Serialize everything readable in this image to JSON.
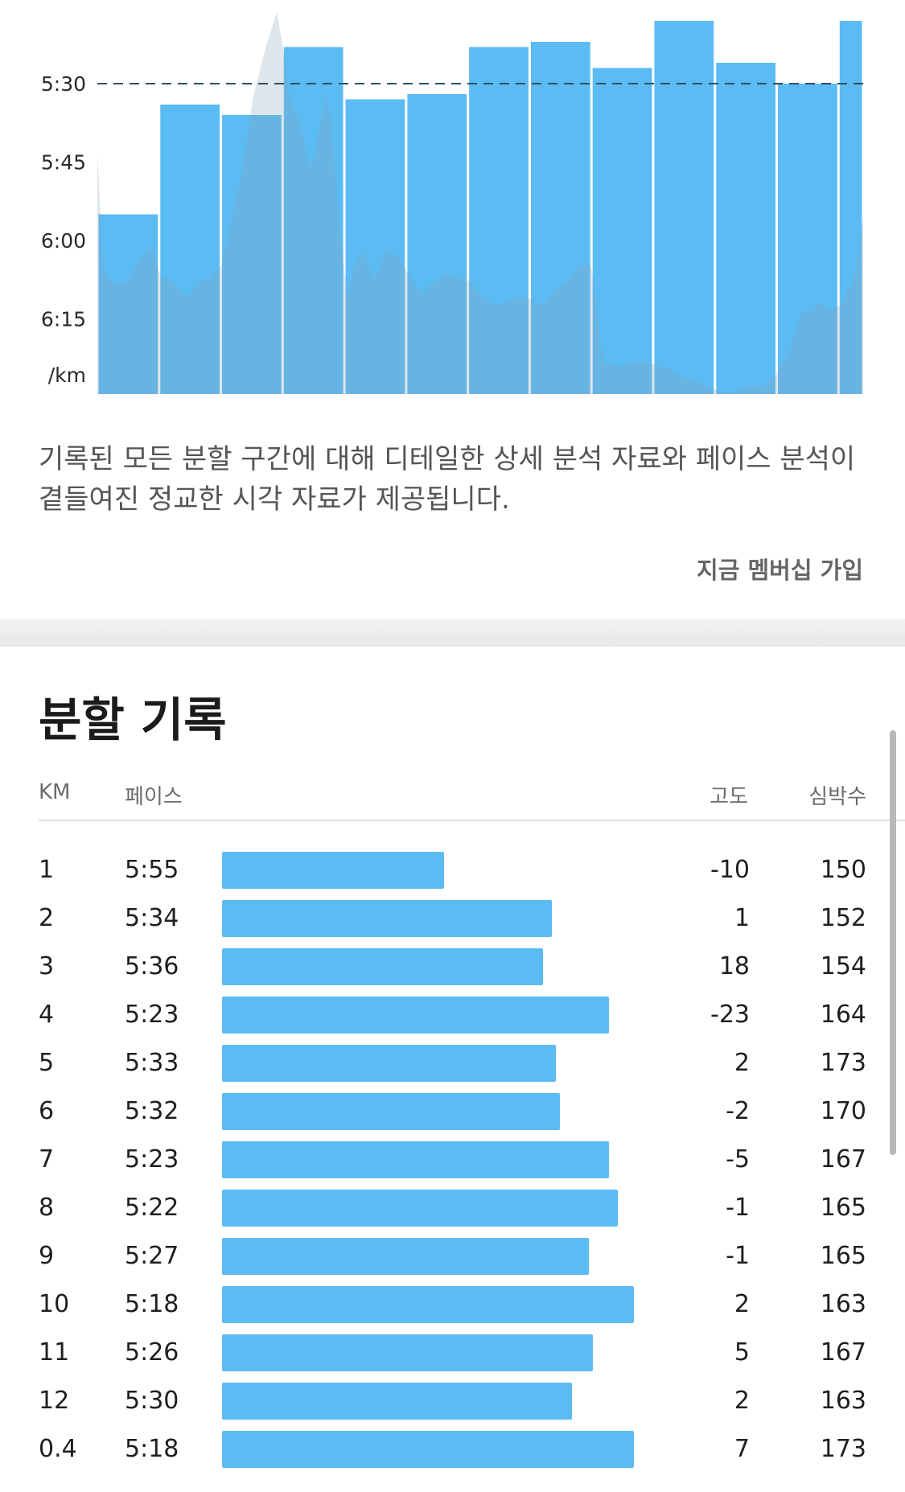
{
  "chart_data": {
    "type": "bar",
    "categories": [
      "1",
      "2",
      "3",
      "4",
      "5",
      "6",
      "7",
      "8",
      "9",
      "10",
      "11",
      "12",
      "0.4"
    ],
    "values_seconds": [
      355,
      334,
      336,
      323,
      333,
      332,
      323,
      322,
      327,
      318,
      326,
      330,
      318
    ],
    "y_ticks": [
      "5:30",
      "5:45",
      "6:00",
      "6:15"
    ],
    "y_unit": "/km",
    "average_line": "5:30",
    "colors": {
      "bar": "#5bbcf4",
      "average_line": "#2f4f5f",
      "elevation_area": "#9fb6c9"
    }
  },
  "description": "기록된 모든 분할 구간에 대해 디테일한 상세 분석 자료와 페이스 분석이 곁들여진 정교한 시각 자료가 제공됩니다.",
  "join_link": "지금 멤버십 가입",
  "splits": {
    "title": "분할 기록",
    "headers": {
      "km": "KM",
      "pace": "페이스",
      "elevation": "고도",
      "heart_rate": "심박수"
    },
    "rows": [
      {
        "km": "1",
        "pace": "5:55",
        "elev": "-10",
        "hr": "150",
        "fraction": 0.54
      },
      {
        "km": "2",
        "pace": "5:34",
        "elev": "1",
        "hr": "152",
        "fraction": 0.8
      },
      {
        "km": "3",
        "pace": "5:36",
        "elev": "18",
        "hr": "154",
        "fraction": 0.78
      },
      {
        "km": "4",
        "pace": "5:23",
        "elev": "-23",
        "hr": "164",
        "fraction": 0.94
      },
      {
        "km": "5",
        "pace": "5:33",
        "elev": "2",
        "hr": "173",
        "fraction": 0.81
      },
      {
        "km": "6",
        "pace": "5:32",
        "elev": "-2",
        "hr": "170",
        "fraction": 0.82
      },
      {
        "km": "7",
        "pace": "5:23",
        "elev": "-5",
        "hr": "167",
        "fraction": 0.94
      },
      {
        "km": "8",
        "pace": "5:22",
        "elev": "-1",
        "hr": "165",
        "fraction": 0.96
      },
      {
        "km": "9",
        "pace": "5:27",
        "elev": "-1",
        "hr": "165",
        "fraction": 0.89
      },
      {
        "km": "10",
        "pace": "5:18",
        "elev": "2",
        "hr": "163",
        "fraction": 1.0
      },
      {
        "km": "11",
        "pace": "5:26",
        "elev": "5",
        "hr": "167",
        "fraction": 0.9
      },
      {
        "km": "12",
        "pace": "5:30",
        "elev": "2",
        "hr": "163",
        "fraction": 0.85
      },
      {
        "km": "0.4",
        "pace": "5:18",
        "elev": "7",
        "hr": "173",
        "fraction": 1.0
      }
    ]
  }
}
